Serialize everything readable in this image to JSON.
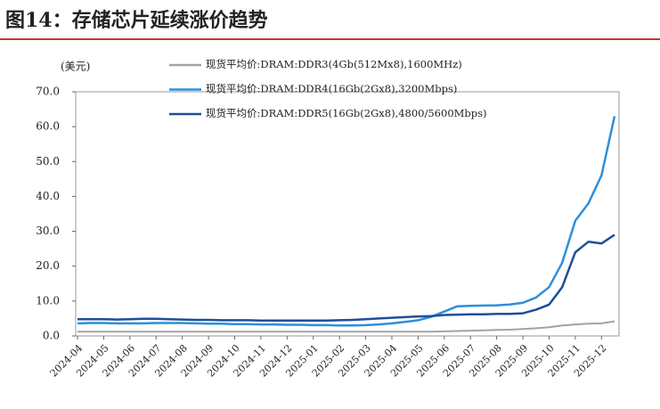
{
  "chart_data": {
    "type": "line",
    "title": "图14：存储芯片延续涨价趋势",
    "y_label": "(美元)",
    "categories": [
      "2024-04",
      null,
      "2024-05",
      null,
      "2024-06",
      null,
      "2024-07",
      null,
      "2024-08",
      null,
      "2024-09",
      null,
      "2024-10",
      null,
      "2024-11",
      null,
      "2024-12",
      null,
      "2025-01",
      null,
      "2025-02",
      null,
      "2025-03",
      null,
      "2025-04",
      null,
      "2025-05",
      null,
      "2025-06",
      null,
      "2025-07",
      null,
      "2025-08",
      null,
      "2025-09",
      null,
      "2025-10",
      null,
      "2025-11",
      null,
      "2025-12",
      null
    ],
    "series": [
      {
        "name": "现货平均价:DRAM:DDR3(4Gb(512Mx8),1600MHz)",
        "color": "#a3a3a3",
        "values": [
          1.2,
          1.2,
          1.2,
          1.2,
          1.2,
          1.2,
          1.2,
          1.2,
          1.2,
          1.2,
          1.2,
          1.2,
          1.2,
          1.2,
          1.2,
          1.2,
          1.2,
          1.2,
          1.2,
          1.2,
          1.2,
          1.2,
          1.2,
          1.2,
          1.2,
          1.2,
          1.2,
          1.2,
          1.3,
          1.4,
          1.5,
          1.6,
          1.7,
          1.8,
          2.0,
          2.2,
          2.5,
          3.0,
          3.3,
          3.5,
          3.6,
          4.2
        ]
      },
      {
        "name": "现货平均价:DRAM:DDR4(16Gb(2Gx8),3200Mbps)",
        "color": "#2e8fd9",
        "values": [
          3.6,
          3.7,
          3.7,
          3.6,
          3.6,
          3.6,
          3.7,
          3.7,
          3.7,
          3.6,
          3.5,
          3.5,
          3.4,
          3.4,
          3.3,
          3.3,
          3.2,
          3.2,
          3.1,
          3.1,
          3.0,
          3.0,
          3.1,
          3.3,
          3.6,
          4.0,
          4.5,
          5.5,
          7.0,
          8.5,
          8.6,
          8.7,
          8.8,
          9.0,
          9.5,
          11.0,
          14.0,
          21.0,
          33.0,
          38.0,
          46.0,
          63.0
        ]
      },
      {
        "name": "现货平均价:DRAM:DDR5(16Gb(2Gx8),4800/5600Mbps)",
        "color": "#1f4e99",
        "values": [
          4.8,
          4.8,
          4.8,
          4.7,
          4.8,
          4.9,
          4.9,
          4.8,
          4.7,
          4.6,
          4.6,
          4.5,
          4.5,
          4.5,
          4.4,
          4.4,
          4.4,
          4.4,
          4.4,
          4.4,
          4.5,
          4.6,
          4.8,
          5.0,
          5.2,
          5.4,
          5.6,
          5.7,
          6.0,
          6.1,
          6.2,
          6.2,
          6.3,
          6.3,
          6.5,
          7.5,
          9.0,
          14.0,
          24.0,
          27.0,
          26.5,
          29.0
        ]
      }
    ],
    "ylim": [
      0,
      70
    ],
    "yticks": [
      {
        "value": 0,
        "label": "0.0"
      },
      {
        "value": 10,
        "label": "10.0"
      },
      {
        "value": 20,
        "label": "20.0"
      },
      {
        "value": 30,
        "label": "30.0"
      },
      {
        "value": 40,
        "label": "40.0"
      },
      {
        "value": 50,
        "label": "50.0"
      },
      {
        "value": 60,
        "label": "60.0"
      },
      {
        "value": 70,
        "label": "70.0"
      }
    ]
  }
}
